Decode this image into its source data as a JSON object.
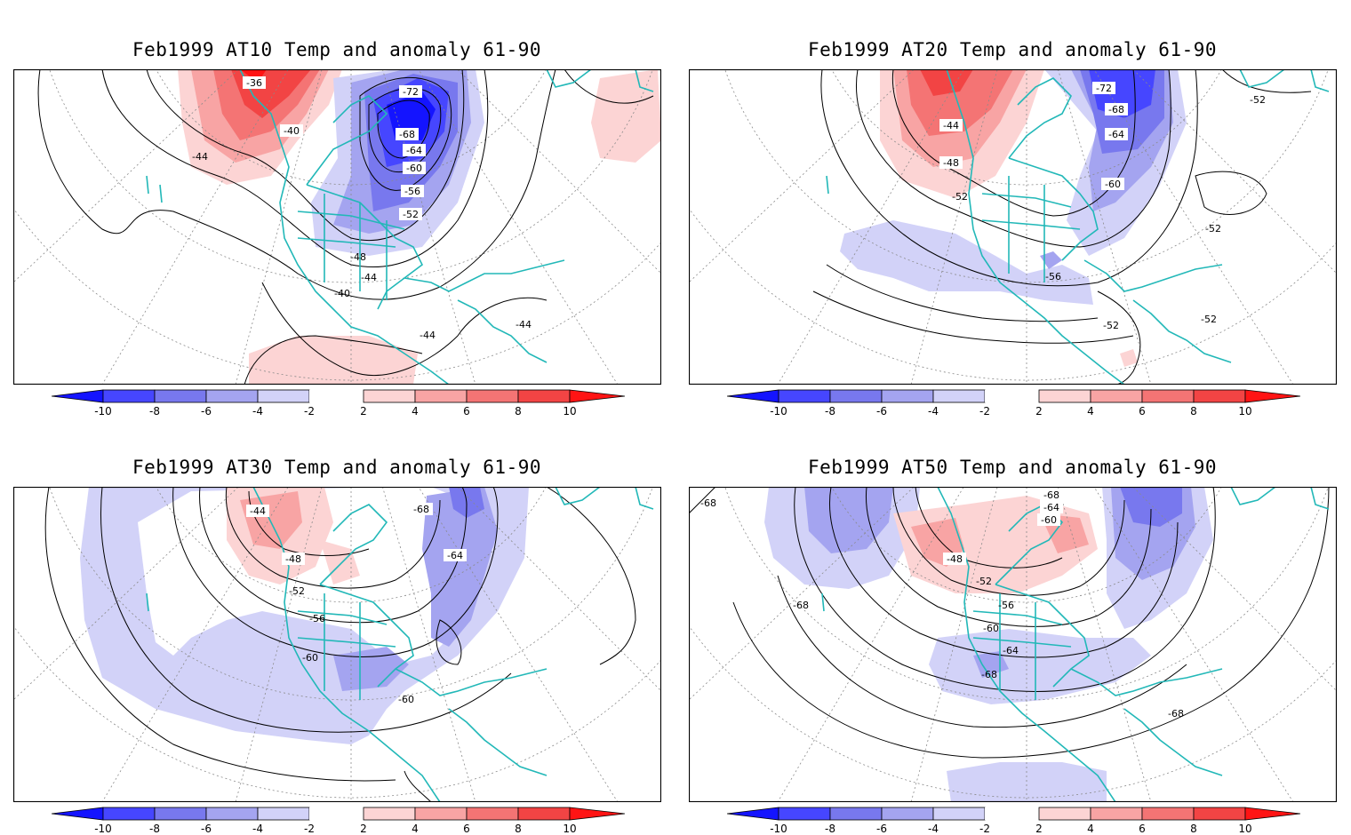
{
  "colorbar": {
    "ticks": [
      "-10",
      "-8",
      "-6",
      "-4",
      "-2",
      "2",
      "4",
      "6",
      "8",
      "10"
    ],
    "colors": [
      "#1414ff",
      "#4646ff",
      "#7878ee",
      "#a4a4f0",
      "#d2d2f8",
      "#ffffff",
      "#fcd4d4",
      "#f8a4a4",
      "#f47474",
      "#f24444",
      "#ff1414"
    ]
  },
  "panels": [
    {
      "title": "Feb1999 AT10 Temp and anomaly 61-90",
      "contour_labels": [
        "-36",
        "-40",
        "-44",
        "-72",
        "-68",
        "-64",
        "-60",
        "-56",
        "-52",
        "-48",
        "-44",
        "-40",
        "-44",
        "-44"
      ],
      "anomalies": [
        {
          "sign": "pos",
          "max": 10
        },
        {
          "sign": "neg",
          "max": 10
        },
        {
          "sign": "pos",
          "max": 2
        },
        {
          "sign": "pos",
          "max": 2
        }
      ]
    },
    {
      "title": "Feb1999 AT20 Temp and anomaly 61-90",
      "contour_labels": [
        "-72",
        "-68",
        "-64",
        "-44",
        "-48",
        "-52",
        "-52",
        "-60",
        "-52",
        "-56",
        "-52",
        "-52"
      ],
      "anomalies": [
        {
          "sign": "pos",
          "max": 6
        },
        {
          "sign": "neg",
          "max": 8
        },
        {
          "sign": "neg",
          "max": 2
        },
        {
          "sign": "neg",
          "max": 4
        }
      ]
    },
    {
      "title": "Feb1999 AT30 Temp and anomaly 61-90",
      "contour_labels": [
        "-44",
        "-68",
        "-64",
        "-48",
        "-52",
        "-56",
        "-60",
        "-60"
      ],
      "anomalies": [
        {
          "sign": "pos",
          "max": 4
        },
        {
          "sign": "neg",
          "max": 6
        },
        {
          "sign": "neg",
          "max": 2
        },
        {
          "sign": "neg",
          "max": 4
        }
      ]
    },
    {
      "title": "Feb1999 AT50 Temp and anomaly 61-90",
      "contour_labels": [
        "-68",
        "-68",
        "-64",
        "-60",
        "-48",
        "-52",
        "-56",
        "-60",
        "-64",
        "-68",
        "-68",
        "-68"
      ],
      "anomalies": [
        {
          "sign": "pos",
          "max": 4
        },
        {
          "sign": "neg",
          "max": 6
        },
        {
          "sign": "neg",
          "max": 4
        },
        {
          "sign": "neg",
          "max": 2
        }
      ]
    }
  ]
}
